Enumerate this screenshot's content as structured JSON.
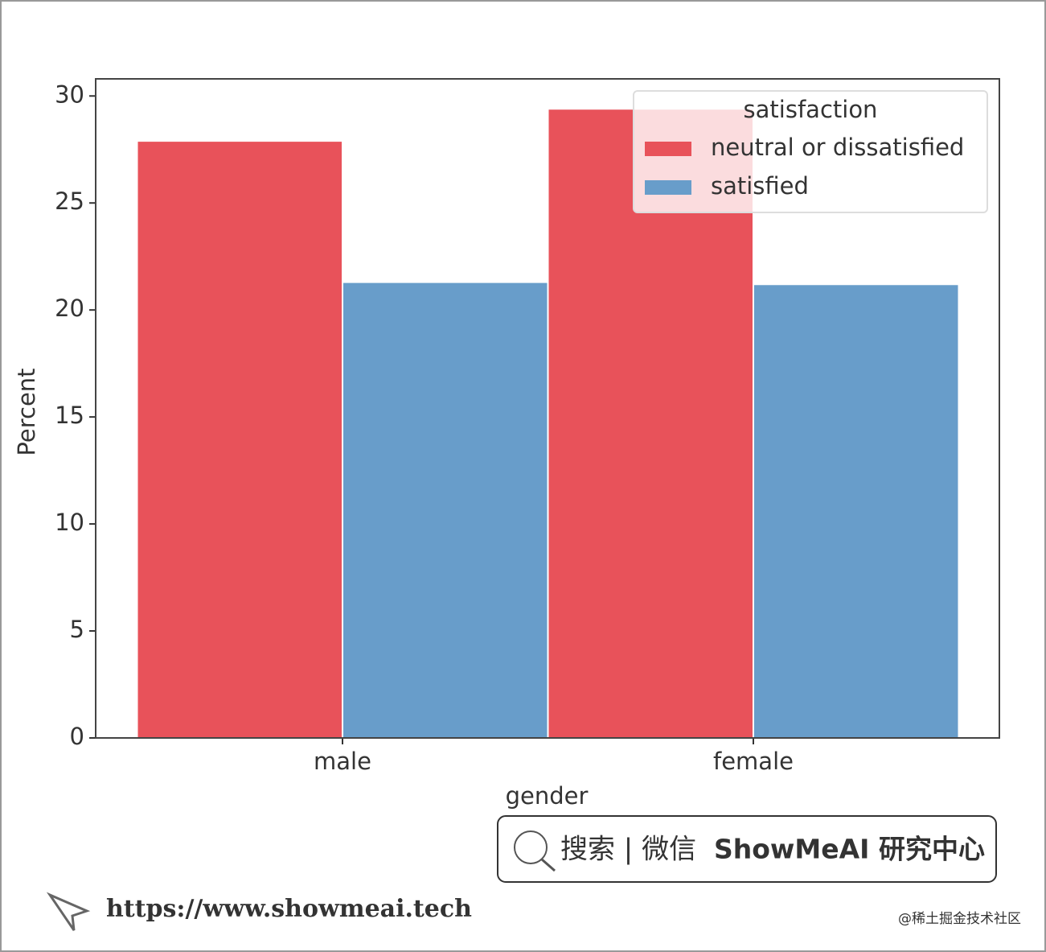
{
  "chart_data": {
    "type": "bar",
    "x_label": "gender",
    "y_label": "Percent",
    "categories": [
      "male",
      "female"
    ],
    "series": [
      {
        "name": "neutral or dissatisfied",
        "color": "#e8525a",
        "values": [
          27.9,
          29.4
        ]
      },
      {
        "name": "satisfied",
        "color": "#689dca",
        "values": [
          21.3,
          21.2
        ]
      }
    ],
    "legend_title": "satisfaction",
    "legend_position": "upper right",
    "ylim": [
      0,
      30.8
    ],
    "yticks": [
      0,
      5,
      10,
      15,
      20,
      25,
      30
    ],
    "grid": false
  },
  "watermark": {
    "search": "搜索 | 微信",
    "brand": "ShowMeAI 研究中心",
    "url": "https://www.showmeai.tech",
    "source": "@稀土掘金技术社区"
  }
}
